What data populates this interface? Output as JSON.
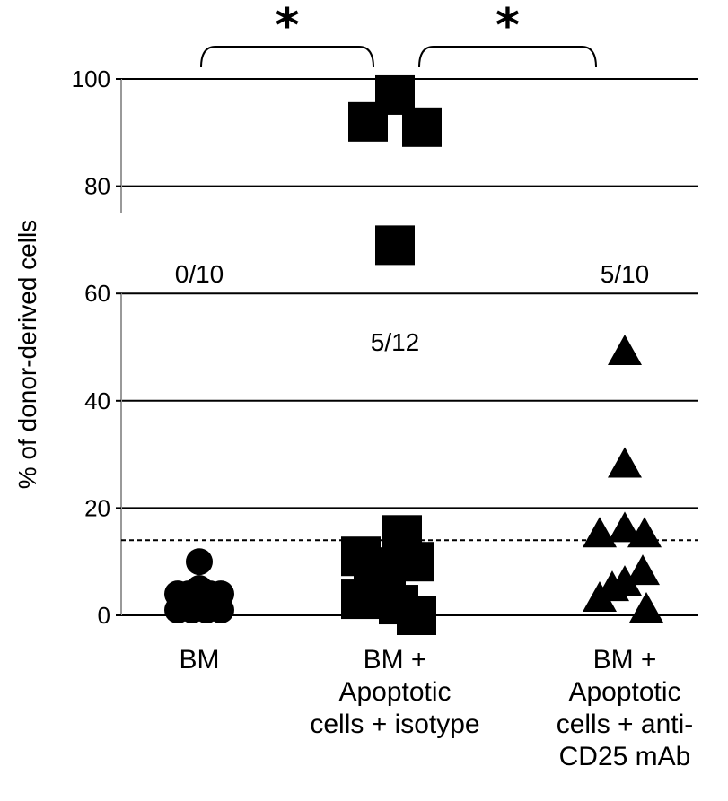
{
  "chart_data": {
    "type": "scatter",
    "ylabel": "% of donor-derived cells",
    "ylim": [
      0,
      100
    ],
    "yticks": [
      0,
      20,
      40,
      60,
      80,
      100
    ],
    "grid": true,
    "threshold": 14,
    "categories": [
      "BM",
      "BM +\nApoptotic\ncells + isotype",
      "BM +\nApoptotic\ncells + anti-\nCD25 mAb"
    ],
    "series": [
      {
        "category": "BM",
        "marker": "circle",
        "count_label": "0/10",
        "points": [
          {
            "dx": -0.6,
            "y": 4
          },
          {
            "dx": 0.0,
            "y": 10
          },
          {
            "dx": 0.0,
            "y": 5
          },
          {
            "dx": 0.6,
            "y": 4
          },
          {
            "dx": -0.6,
            "y": 1
          },
          {
            "dx": -0.2,
            "y": 1
          },
          {
            "dx": 0.2,
            "y": 1
          },
          {
            "dx": 0.6,
            "y": 1
          },
          {
            "dx": -0.3,
            "y": 4
          },
          {
            "dx": 0.3,
            "y": 4
          }
        ]
      },
      {
        "category": "BM + Apoptotic cells + isotype",
        "marker": "square",
        "count_label": "5/12",
        "points": [
          {
            "dx": 0.0,
            "y": 97
          },
          {
            "dx": -0.75,
            "y": 92
          },
          {
            "dx": 0.75,
            "y": 91
          },
          {
            "dx": 0.0,
            "y": 69
          },
          {
            "dx": -0.95,
            "y": 11
          },
          {
            "dx": -0.95,
            "y": 3
          },
          {
            "dx": -0.6,
            "y": 5
          },
          {
            "dx": -0.25,
            "y": 9
          },
          {
            "dx": 0.2,
            "y": 15
          },
          {
            "dx": 0.55,
            "y": 10
          },
          {
            "dx": 0.1,
            "y": 2
          },
          {
            "dx": 0.6,
            "y": 0
          }
        ]
      },
      {
        "category": "BM + Apoptotic cells + anti-CD25 mAb",
        "marker": "triangle",
        "count_label": "5/10",
        "points": [
          {
            "dx": 0.0,
            "y": 49
          },
          {
            "dx": 0.0,
            "y": 28
          },
          {
            "dx": -0.7,
            "y": 15
          },
          {
            "dx": 0.0,
            "y": 16
          },
          {
            "dx": 0.55,
            "y": 15
          },
          {
            "dx": -0.7,
            "y": 3
          },
          {
            "dx": -0.35,
            "y": 5
          },
          {
            "dx": 0.0,
            "y": 6
          },
          {
            "dx": 0.5,
            "y": 8
          },
          {
            "dx": 0.6,
            "y": 1
          }
        ]
      }
    ],
    "significance": [
      {
        "from": 0,
        "to": 1,
        "label": "*"
      },
      {
        "from": 1,
        "to": 2,
        "label": "*"
      }
    ]
  }
}
